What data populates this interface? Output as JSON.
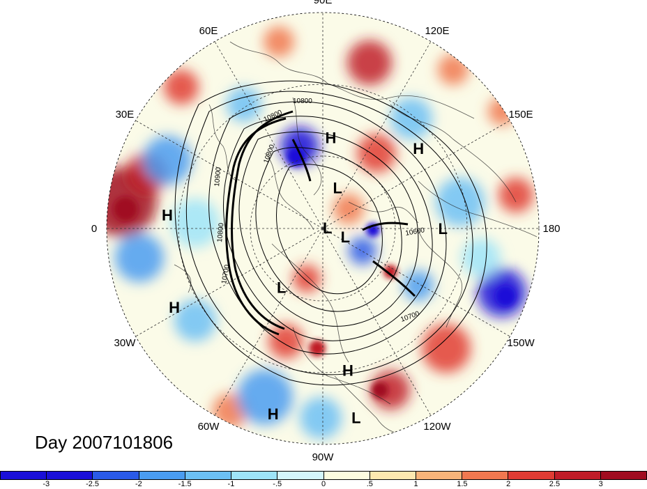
{
  "title": "Day 2007101806",
  "longitude_labels": [
    "90E",
    "60E",
    "30E",
    "0",
    "30W",
    "60W",
    "90W",
    "120W",
    "150W",
    "180",
    "150E",
    "120E"
  ],
  "pressure_centers": [
    {
      "label": "H",
      "lon": 95,
      "lat": 52
    },
    {
      "label": "H",
      "lon": 140,
      "lat": 38
    },
    {
      "label": "H",
      "lon": 5,
      "lat": 25
    },
    {
      "label": "H",
      "lon": -28,
      "lat": 20
    },
    {
      "label": "H",
      "lon": -100,
      "lat": 30
    },
    {
      "label": "H",
      "lon": -75,
      "lat": 10
    },
    {
      "label": "L",
      "lon": 110,
      "lat": 72
    },
    {
      "label": "L",
      "lon": 170,
      "lat": 88
    },
    {
      "label": "L",
      "lon": -160,
      "lat": 80
    },
    {
      "label": "L",
      "lon": 180,
      "lat": 40
    },
    {
      "label": "L",
      "lon": -55,
      "lat": 60
    },
    {
      "label": "L",
      "lon": -100,
      "lat": 10
    }
  ],
  "contour_labels": [
    "10800",
    "10800",
    "10800",
    "10900",
    "10700",
    "10700",
    "10600",
    "10800"
  ],
  "colorbar": {
    "colors": [
      "#1a0fd8",
      "#2a5ae8",
      "#4a9cf0",
      "#6cc0f4",
      "#9ee4f8",
      "#d4f6fc",
      "#fdfce0",
      "#fde8b0",
      "#f8b47a",
      "#f07850",
      "#e03c34",
      "#c01c28",
      "#a00c20"
    ],
    "tick_labels": [
      "-3",
      "-2.5",
      "-2",
      "-1.5",
      "-1",
      "-.5",
      "0",
      ".5",
      "1",
      "1.5",
      "2",
      "2.5",
      "3"
    ]
  }
}
